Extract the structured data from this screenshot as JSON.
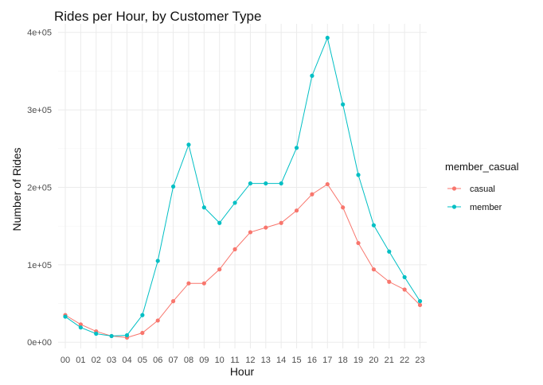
{
  "chart_data": {
    "type": "line",
    "title": "Rides per Hour, by Customer Type",
    "xlabel": "Hour",
    "ylabel": "Number of Rides",
    "categories": [
      "00",
      "01",
      "02",
      "03",
      "04",
      "05",
      "06",
      "07",
      "08",
      "09",
      "10",
      "11",
      "12",
      "13",
      "14",
      "15",
      "16",
      "17",
      "18",
      "19",
      "20",
      "21",
      "22",
      "23"
    ],
    "y_ticks": [
      0,
      100000,
      200000,
      300000,
      400000
    ],
    "y_tick_labels": [
      "0e+00",
      "1e+05",
      "2e+05",
      "3e+05",
      "4e+05"
    ],
    "ylim": [
      -8000,
      411000
    ],
    "grid": true,
    "legend": {
      "title": "member_casual",
      "position": "right"
    },
    "series": [
      {
        "name": "casual",
        "color": "#F8766D",
        "values": [
          35000,
          23000,
          14000,
          8000,
          6000,
          12000,
          28000,
          53000,
          76000,
          76000,
          94000,
          120000,
          142000,
          148000,
          154000,
          170000,
          191000,
          204000,
          174000,
          128000,
          94000,
          78000,
          68000,
          48000
        ]
      },
      {
        "name": "member",
        "color": "#00BFC4",
        "values": [
          33000,
          19000,
          11000,
          8000,
          9000,
          35000,
          105000,
          201000,
          255000,
          174000,
          154000,
          180000,
          205000,
          205000,
          205000,
          251000,
          344000,
          393000,
          307000,
          216000,
          151000,
          117000,
          84000,
          53000
        ]
      }
    ]
  }
}
